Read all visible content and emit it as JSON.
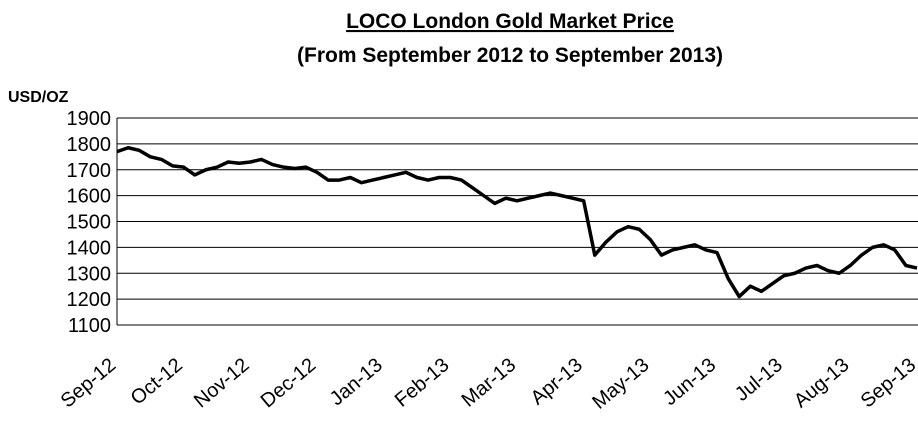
{
  "chart_data": {
    "type": "line",
    "title": "LOCO London Gold Market Price",
    "subtitle": "(From September 2012 to September 2013)",
    "y_label": "USD/OZ",
    "categories": [
      "Sep-12",
      null,
      null,
      null,
      null,
      null,
      "Oct-12",
      null,
      null,
      null,
      null,
      null,
      "Nov-12",
      null,
      null,
      null,
      null,
      null,
      "Dec-12",
      null,
      null,
      null,
      null,
      null,
      "Jan-13",
      null,
      null,
      null,
      null,
      null,
      "Feb-13",
      null,
      null,
      null,
      null,
      null,
      "Mar-13",
      null,
      null,
      null,
      null,
      null,
      "Apr-13",
      null,
      null,
      null,
      null,
      null,
      "May-13",
      null,
      null,
      null,
      null,
      null,
      "Jun-13",
      null,
      null,
      null,
      null,
      null,
      "Jul-13",
      null,
      null,
      null,
      null,
      null,
      "Aug-13",
      null,
      null,
      null,
      null,
      null,
      "Sep-13"
    ],
    "values": [
      1770,
      1785,
      1775,
      1750,
      1740,
      1715,
      1710,
      1680,
      1700,
      1710,
      1730,
      1725,
      1730,
      1740,
      1720,
      1710,
      1705,
      1710,
      1690,
      1660,
      1660,
      1670,
      1650,
      1660,
      1670,
      1680,
      1690,
      1670,
      1660,
      1670,
      1670,
      1660,
      1630,
      1600,
      1570,
      1590,
      1580,
      1590,
      1600,
      1610,
      1600,
      1590,
      1580,
      1370,
      1420,
      1460,
      1480,
      1470,
      1430,
      1370,
      1390,
      1400,
      1410,
      1390,
      1380,
      1280,
      1210,
      1250,
      1230,
      1260,
      1290,
      1300,
      1320,
      1330,
      1310,
      1300,
      1330,
      1370,
      1400,
      1410,
      1390,
      1330,
      1320
    ],
    "color": "#000000",
    "ylim": [
      1100,
      1900
    ],
    "yticks": [
      1100,
      1200,
      1300,
      1400,
      1500,
      1600,
      1700,
      1800,
      1900
    ],
    "grid": true
  }
}
